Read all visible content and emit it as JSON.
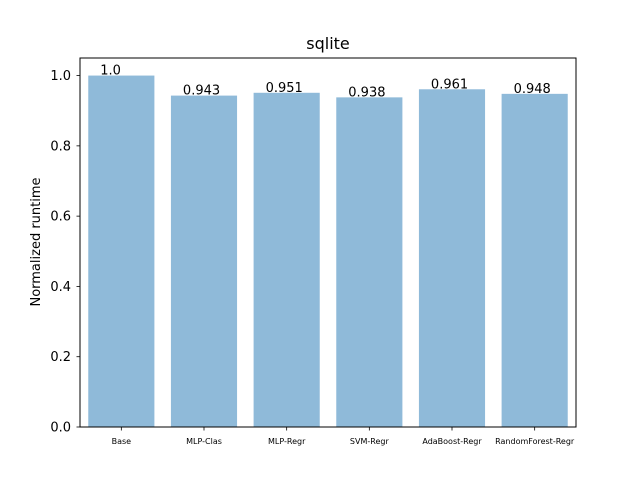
{
  "chart_data": {
    "type": "bar",
    "title": "sqlite",
    "ylabel": "Normalized runtime",
    "xlabel": "",
    "categories": [
      "Base",
      "MLP-Clas",
      "MLP-Regr",
      "SVM-Regr",
      "AdaBoost-Regr",
      "RandomForest-Regr"
    ],
    "values": [
      1.0,
      0.943,
      0.951,
      0.938,
      0.961,
      0.948
    ],
    "value_labels": [
      "1.0",
      "0.943",
      "0.951",
      "0.938",
      "0.961",
      "0.948"
    ],
    "ylim": [
      0,
      1.05
    ],
    "yticks": [
      0.0,
      0.2,
      0.4,
      0.6,
      0.8,
      1.0
    ],
    "ytick_labels": [
      "0.0",
      "0.2",
      "0.4",
      "0.6",
      "0.8",
      "1.0"
    ],
    "grid": false,
    "bar_color": "#8fbad9"
  }
}
